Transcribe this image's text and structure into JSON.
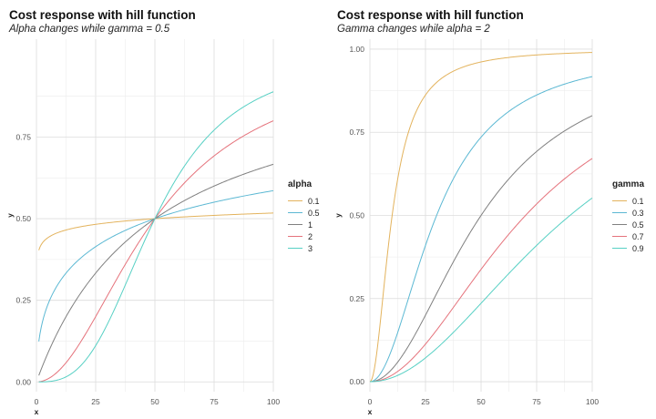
{
  "chart_data": [
    {
      "type": "line",
      "title": "Cost response with hill function",
      "subtitle": "Alpha changes while gamma = 0.5",
      "xlabel": "x",
      "ylabel": "y",
      "xlim": [
        0,
        100
      ],
      "ylim": [
        0,
        1
      ],
      "xticks": [
        "0",
        "25",
        "50",
        "75",
        "100"
      ],
      "yticks": [
        "0.00",
        "0.25",
        "0.50",
        "0.75"
      ],
      "grid": true,
      "legend_position": "right",
      "legend_title": "alpha",
      "series": [
        {
          "name": "0.1",
          "color": "#e3b35d",
          "alpha": 0.1,
          "gamma": 0.5
        },
        {
          "name": "0.5",
          "color": "#5bb8d3",
          "alpha": 0.5,
          "gamma": 0.5
        },
        {
          "name": "1",
          "color": "#808080",
          "alpha": 1,
          "gamma": 0.5
        },
        {
          "name": "2",
          "color": "#e5737c",
          "alpha": 2,
          "gamma": 0.5
        },
        {
          "name": "3",
          "color": "#57d0c4",
          "alpha": 3,
          "gamma": 0.5
        }
      ]
    },
    {
      "type": "line",
      "title": "Cost response with hill function",
      "subtitle": "Gamma changes while alpha = 2",
      "xlabel": "x",
      "ylabel": "y",
      "xlim": [
        0,
        100
      ],
      "ylim": [
        0,
        1
      ],
      "xticks": [
        "0",
        "25",
        "50",
        "75",
        "100"
      ],
      "yticks": [
        "0.00",
        "0.25",
        "0.50",
        "0.75",
        "1.00"
      ],
      "grid": true,
      "legend_position": "right",
      "legend_title": "gamma",
      "series": [
        {
          "name": "0.1",
          "color": "#e3b35d",
          "alpha": 2,
          "gamma": 0.1
        },
        {
          "name": "0.3",
          "color": "#5bb8d3",
          "alpha": 2,
          "gamma": 0.3
        },
        {
          "name": "0.5",
          "color": "#808080",
          "alpha": 2,
          "gamma": 0.5
        },
        {
          "name": "0.7",
          "color": "#e5737c",
          "alpha": 2,
          "gamma": 0.7
        },
        {
          "name": "0.9",
          "color": "#57d0c4",
          "alpha": 2,
          "gamma": 0.9
        }
      ]
    }
  ]
}
